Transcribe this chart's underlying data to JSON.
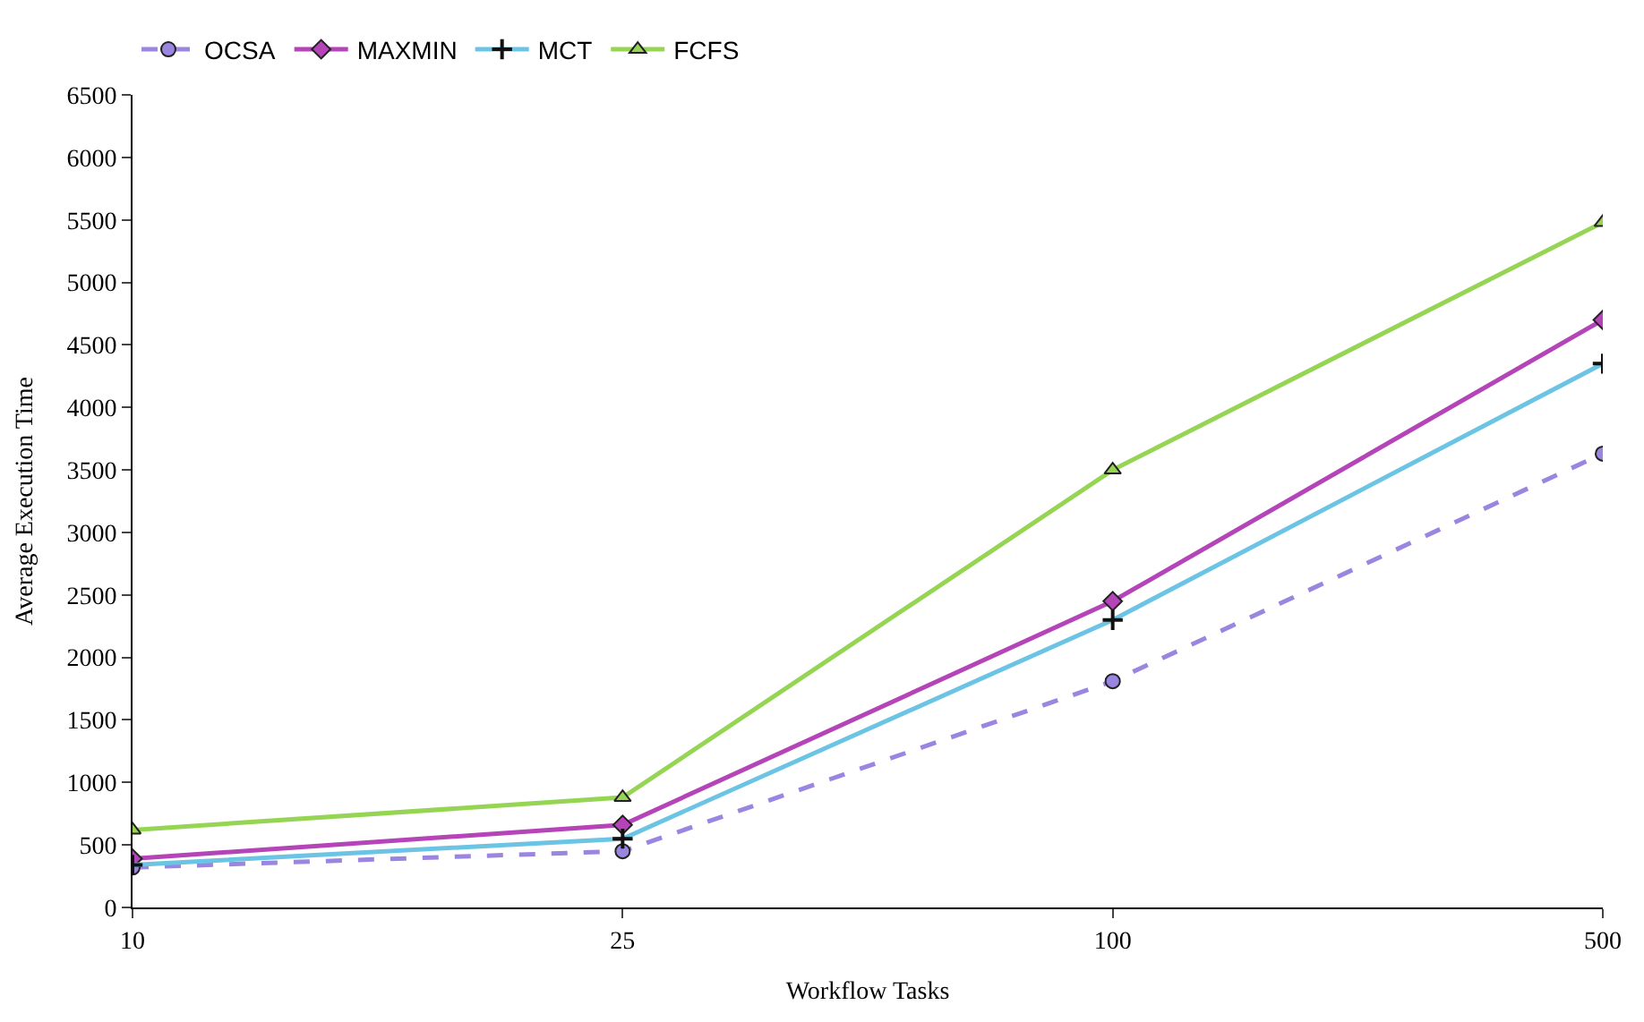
{
  "chart_data": {
    "type": "line",
    "xlabel": "Workflow Tasks",
    "ylabel": "Average Execution Time",
    "categories": [
      "10",
      "25",
      "100",
      "500"
    ],
    "series": [
      {
        "name": "OCSA",
        "color": "#9a86e0",
        "line_style": "dashed",
        "marker": "circle",
        "values": [
          320,
          450,
          1810,
          3630
        ]
      },
      {
        "name": "MAXMIN",
        "color": "#b444b8",
        "line_style": "solid",
        "marker": "diamond",
        "values": [
          390,
          660,
          2450,
          4700
        ]
      },
      {
        "name": "MCT",
        "color": "#6cc4e4",
        "line_style": "solid",
        "marker": "cross",
        "values": [
          340,
          550,
          2300,
          4350
        ]
      },
      {
        "name": "FCFS",
        "color": "#96d454",
        "line_style": "solid",
        "marker": "triangle",
        "values": [
          620,
          880,
          3500,
          5480
        ]
      }
    ],
    "ylim": [
      0,
      6500
    ],
    "yticks": [
      0,
      500,
      1000,
      1500,
      2000,
      2500,
      3000,
      3500,
      4000,
      4500,
      5000,
      5500,
      6000,
      6500
    ],
    "legend": "top left"
  }
}
